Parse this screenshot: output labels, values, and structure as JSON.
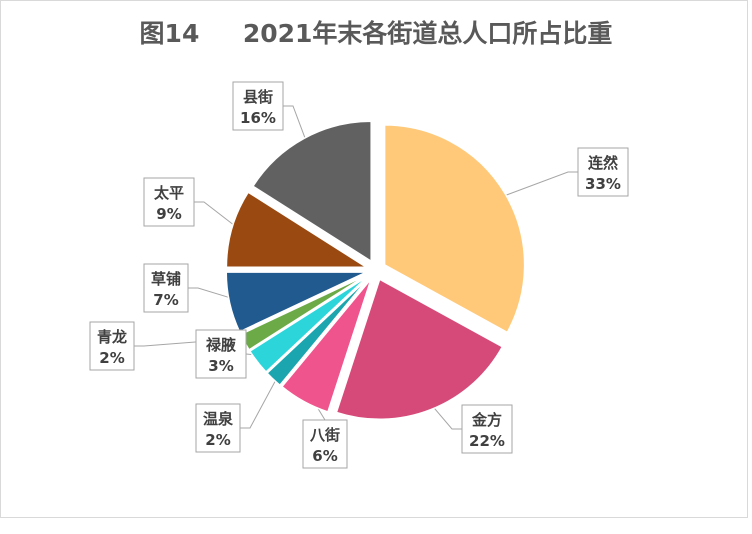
{
  "chart_data": {
    "type": "pie",
    "title": "图14     2021年末各街道总人口所占比重",
    "categories": [
      "连然",
      "金方",
      "八街",
      "温泉",
      "禄腋",
      "青龙",
      "草铺",
      "太平",
      "县街"
    ],
    "values": [
      33,
      22,
      6,
      2,
      3,
      2,
      7,
      9,
      16
    ],
    "value_labels": [
      "33%",
      "22%",
      "6%",
      "2%",
      "3%",
      "2%",
      "7%",
      "9%",
      "16%"
    ],
    "colors": [
      "#FFC979",
      "#D64A7A",
      "#F0548C",
      "#1BA5AE",
      "#2CD5DA",
      "#6BAA46",
      "#215A8E",
      "#9A4A10",
      "#616161"
    ],
    "legend": "none",
    "data_labels": "callouts"
  }
}
